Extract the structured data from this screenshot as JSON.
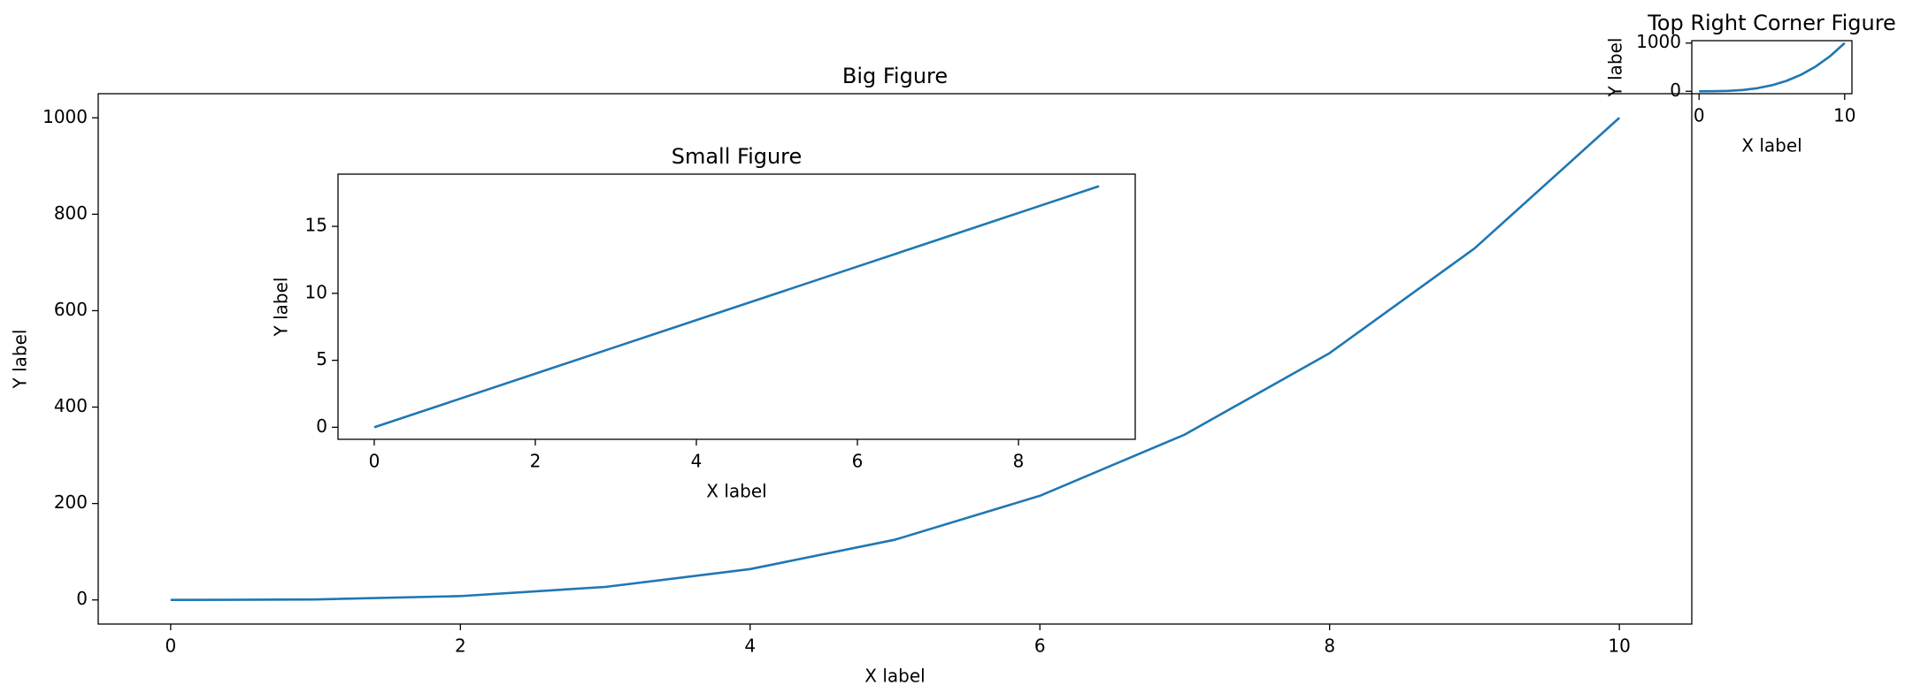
{
  "chart_data": [
    {
      "type": "line",
      "title": "Big Figure",
      "xlabel": "X label",
      "ylabel": "Y label",
      "x": [
        0,
        1,
        2,
        3,
        4,
        5,
        6,
        7,
        8,
        9,
        10
      ],
      "series": [
        {
          "values": [
            0,
            1,
            8,
            27,
            64,
            125,
            216,
            343,
            512,
            729,
            1000
          ],
          "color": "#1f77b4"
        }
      ],
      "xlim": [
        -0.5,
        10.5
      ],
      "ylim": [
        -50,
        1050
      ],
      "xticks": [
        0,
        2,
        4,
        6,
        8,
        10
      ],
      "yticks": [
        0,
        200,
        400,
        600,
        800,
        1000
      ],
      "grid": false
    },
    {
      "type": "line",
      "title": "Small Figure",
      "xlabel": "X label",
      "ylabel": "Y label",
      "x": [
        0,
        1,
        2,
        3,
        4,
        5,
        6,
        7,
        8,
        9
      ],
      "series": [
        {
          "values": [
            0,
            2,
            4,
            6,
            8,
            10,
            12,
            14,
            16,
            18
          ],
          "color": "#1f77b4"
        }
      ],
      "xlim": [
        -0.45,
        9.45
      ],
      "ylim": [
        -0.9,
        18.9
      ],
      "xticks": [
        0,
        2,
        4,
        6,
        8
      ],
      "yticks": [
        0,
        5,
        10,
        15
      ],
      "grid": false
    },
    {
      "type": "line",
      "title": "Top Right Corner Figure",
      "xlabel": "X label",
      "ylabel": "Y label",
      "x": [
        0,
        1,
        2,
        3,
        4,
        5,
        6,
        7,
        8,
        9,
        10
      ],
      "series": [
        {
          "values": [
            0,
            1,
            8,
            27,
            64,
            125,
            216,
            343,
            512,
            729,
            1000
          ],
          "color": "#1f77b4"
        }
      ],
      "xlim": [
        -0.5,
        10.5
      ],
      "ylim": [
        -50,
        1050
      ],
      "xticks": [
        0,
        10
      ],
      "yticks": [
        0,
        1000
      ],
      "grid": false
    }
  ]
}
